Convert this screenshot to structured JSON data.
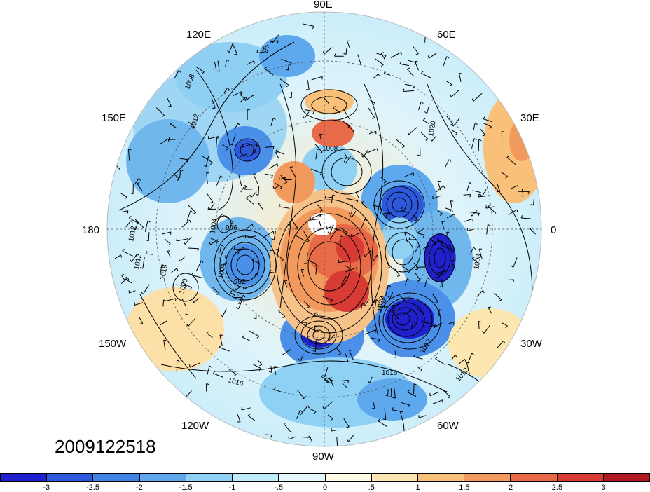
{
  "map": {
    "longitude_labels": {
      "top": "90E",
      "upper_left": "120E",
      "upper_right": "60E",
      "left_upper": "150E",
      "right_upper": "30E",
      "left": "180",
      "right": "0",
      "left_lower": "150W",
      "right_lower": "30W",
      "lower_left": "120W",
      "lower_right": "60W",
      "bottom": "90W"
    },
    "contour_labels": [
      "1008",
      "1012",
      "1020",
      "1012",
      "1012",
      "1016",
      "1020",
      "1004",
      "992",
      "1004",
      "996",
      "1020",
      "1008",
      "1012",
      "1016",
      "1012",
      "1008",
      "1016"
    ],
    "colors": {
      "strong_negative": "#1a1ad6",
      "negative": "#4a90e8",
      "weak_negative": "#c8f0fa",
      "neutral": "#fff8e0",
      "positive": "#f5a070",
      "strong_positive": "#d42020"
    }
  },
  "timestamp": "2009122518",
  "colorbar": {
    "colors": [
      "#2020cc",
      "#2e58dc",
      "#3f84e6",
      "#5ea8ee",
      "#8fd0f5",
      "#c0ecfa",
      "#e4f8fc",
      "#fffce8",
      "#fde7b0",
      "#f8c078",
      "#f29a5e",
      "#e86a48",
      "#d83a34",
      "#b01a24"
    ],
    "ticks": [
      "-3",
      "-2.5",
      "-2",
      "-1.5",
      "-1",
      "-.5",
      "0",
      ".5",
      "1",
      "1.5",
      "2",
      "2.5",
      "3"
    ]
  }
}
